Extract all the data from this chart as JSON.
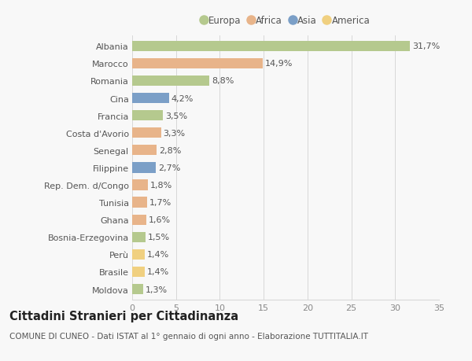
{
  "countries": [
    "Albania",
    "Marocco",
    "Romania",
    "Cina",
    "Francia",
    "Costa d'Avorio",
    "Senegal",
    "Filippine",
    "Rep. Dem. d/Congo",
    "Tunisia",
    "Ghana",
    "Bosnia-Erzegovina",
    "Perù",
    "Brasile",
    "Moldova"
  ],
  "values": [
    31.7,
    14.9,
    8.8,
    4.2,
    3.5,
    3.3,
    2.8,
    2.7,
    1.8,
    1.7,
    1.6,
    1.5,
    1.4,
    1.4,
    1.3
  ],
  "continents": [
    "Europa",
    "Africa",
    "Europa",
    "Asia",
    "Europa",
    "Africa",
    "Africa",
    "Asia",
    "Africa",
    "Africa",
    "Africa",
    "Europa",
    "America",
    "America",
    "Europa"
  ],
  "continent_colors": {
    "Europa": "#b5c98e",
    "Africa": "#e8b48a",
    "Asia": "#7b9fc7",
    "America": "#f0d080"
  },
  "legend_order": [
    "Europa",
    "Africa",
    "Asia",
    "America"
  ],
  "xlim": [
    0,
    35
  ],
  "xticks": [
    0,
    5,
    10,
    15,
    20,
    25,
    30,
    35
  ],
  "title": "Cittadini Stranieri per Cittadinanza",
  "subtitle": "COMUNE DI CUNEO - Dati ISTAT al 1° gennaio di ogni anno - Elaborazione TUTTITALIA.IT",
  "background_color": "#f8f8f8",
  "bar_height": 0.6,
  "grid_color": "#d8d8d8",
  "label_fontsize": 8.0,
  "value_fontsize": 8.0,
  "title_fontsize": 10.5,
  "subtitle_fontsize": 7.5,
  "legend_fontsize": 8.5,
  "tick_fontsize": 8.0
}
